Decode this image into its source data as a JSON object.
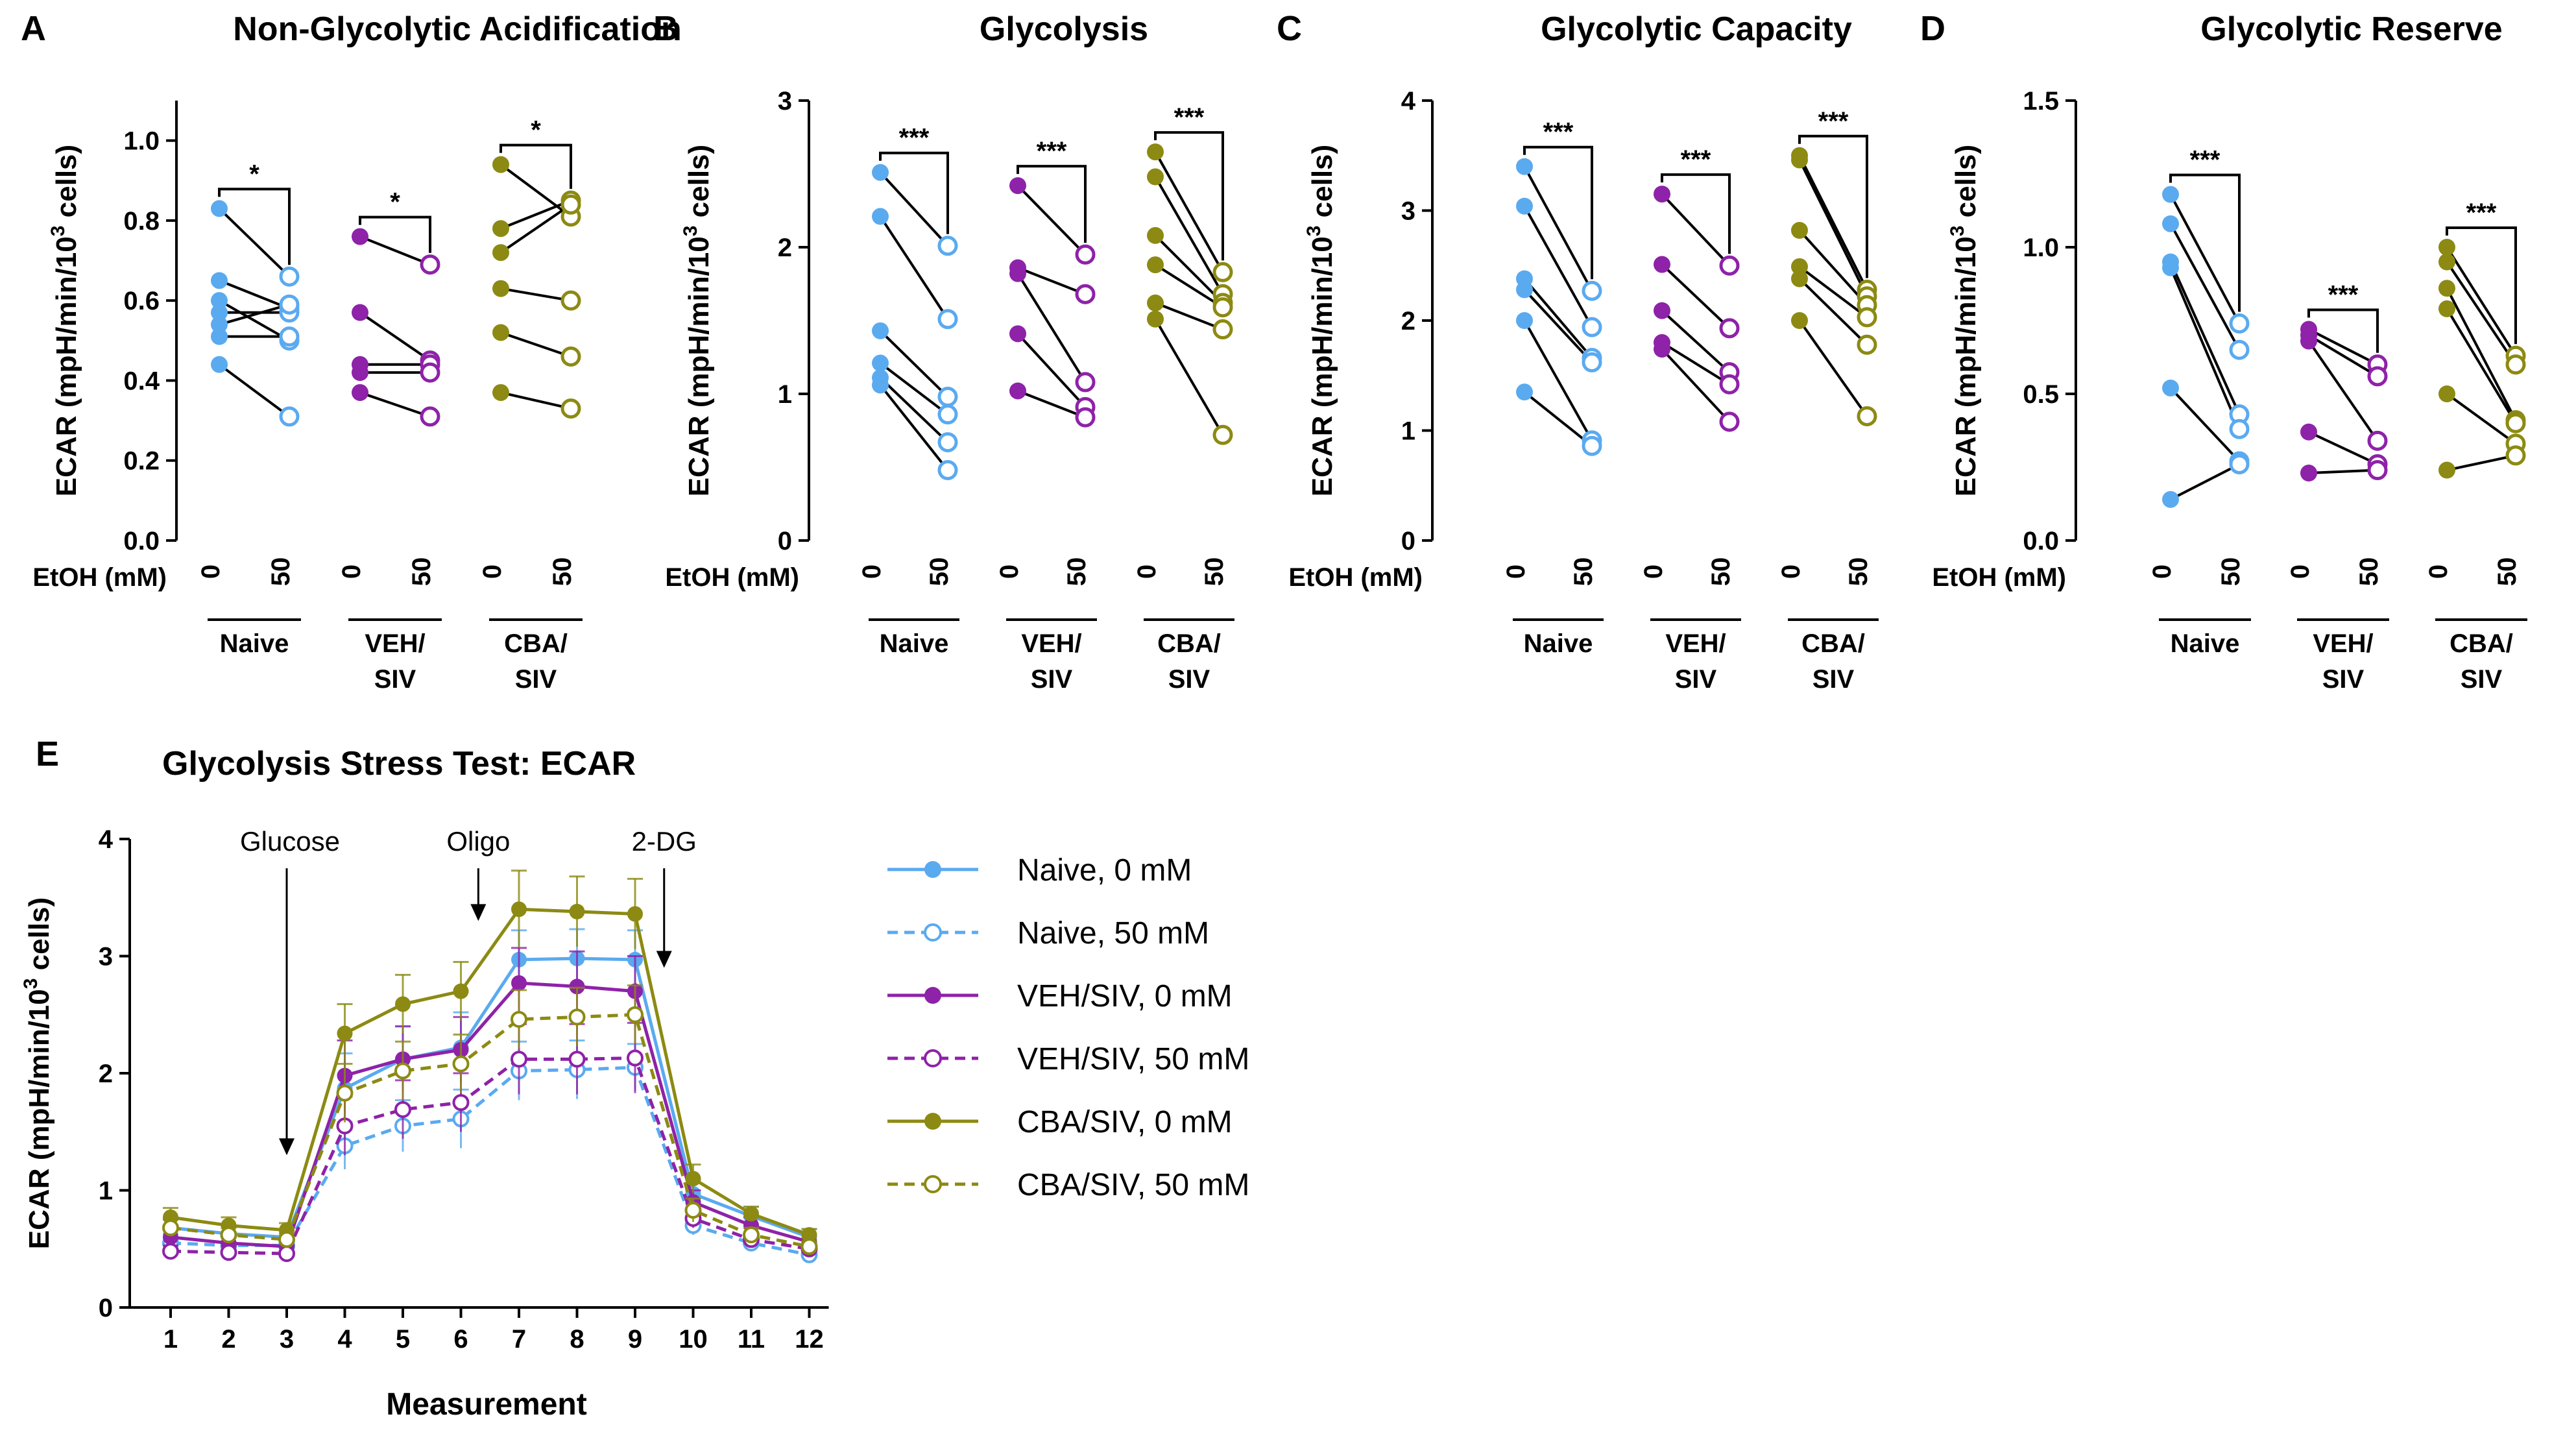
{
  "colors": {
    "naive": "#5aaaf0",
    "veh": "#8e22a8",
    "cba": "#8c8a12",
    "black": "#000000"
  },
  "panels_top": [
    {
      "letter": "A",
      "title": "Non-Glycolytic Acidification",
      "ylabel": "ECAR (mpH/min/10",
      "ylabel_sup": "3",
      "ylabel_end": " cells)",
      "ylim": [
        0,
        1.1
      ],
      "yticks": [
        "0.0",
        "0.2",
        "0.4",
        "0.6",
        "0.8",
        "1.0"
      ],
      "ytick_values": [
        0,
        0.2,
        0.4,
        0.6,
        0.8,
        1.0
      ],
      "etoh_label": "EtOH  (mM)",
      "groups": [
        {
          "name_lines": [
            "Naive"
          ],
          "color_key": "naive",
          "sig": "*",
          "x_labels": [
            "0",
            "50"
          ],
          "pairs": [
            [
              0.83,
              0.66
            ],
            [
              0.65,
              0.58
            ],
            [
              0.6,
              0.5
            ],
            [
              0.57,
              0.57
            ],
            [
              0.54,
              0.59
            ],
            [
              0.51,
              0.51
            ],
            [
              0.44,
              0.31
            ]
          ]
        },
        {
          "name_lines": [
            "VEH/",
            "SIV"
          ],
          "color_key": "veh",
          "sig": "*",
          "x_labels": [
            "0",
            "50"
          ],
          "pairs": [
            [
              0.76,
              0.69
            ],
            [
              0.57,
              0.45
            ],
            [
              0.44,
              0.44
            ],
            [
              0.42,
              0.42
            ],
            [
              0.37,
              0.31
            ]
          ]
        },
        {
          "name_lines": [
            "CBA/",
            "SIV"
          ],
          "color_key": "cba",
          "sig": "*",
          "x_labels": [
            "0",
            "50"
          ],
          "pairs": [
            [
              0.94,
              0.81
            ],
            [
              0.78,
              0.85
            ],
            [
              0.72,
              0.84
            ],
            [
              0.63,
              0.6
            ],
            [
              0.52,
              0.46
            ],
            [
              0.37,
              0.33
            ]
          ]
        }
      ]
    },
    {
      "letter": "B",
      "title": "Glycolysis",
      "ylabel": "ECAR (mpH/min/10",
      "ylabel_sup": "3",
      "ylabel_end": " cells)",
      "ylim": [
        0,
        3
      ],
      "yticks": [
        "0",
        "1",
        "2",
        "3"
      ],
      "ytick_values": [
        0,
        1,
        2,
        3
      ],
      "etoh_label": "EtOH  (mM)",
      "groups": [
        {
          "name_lines": [
            "Naive"
          ],
          "color_key": "naive",
          "sig": "***",
          "x_labels": [
            "0",
            "50"
          ],
          "pairs": [
            [
              2.51,
              2.01
            ],
            [
              2.21,
              1.51
            ],
            [
              1.43,
              0.98
            ],
            [
              1.21,
              0.86
            ],
            [
              1.11,
              0.67
            ],
            [
              1.06,
              0.48
            ]
          ]
        },
        {
          "name_lines": [
            "VEH/",
            "SIV"
          ],
          "color_key": "veh",
          "sig": "***",
          "x_labels": [
            "0",
            "50"
          ],
          "pairs": [
            [
              2.42,
              1.95
            ],
            [
              1.86,
              1.68
            ],
            [
              1.82,
              1.08
            ],
            [
              1.41,
              0.91
            ],
            [
              1.02,
              0.84
            ]
          ]
        },
        {
          "name_lines": [
            "CBA/",
            "SIV"
          ],
          "color_key": "cba",
          "sig": "***",
          "x_labels": [
            "0",
            "50"
          ],
          "pairs": [
            [
              2.65,
              1.83
            ],
            [
              2.48,
              1.68
            ],
            [
              2.08,
              1.62
            ],
            [
              1.88,
              1.59
            ],
            [
              1.62,
              1.44
            ],
            [
              1.51,
              0.72
            ]
          ]
        }
      ]
    },
    {
      "letter": "C",
      "title": "Glycolytic Capacity",
      "ylabel": "ECAR (mpH/min/10",
      "ylabel_sup": "3",
      "ylabel_end": " cells)",
      "ylim": [
        0,
        4
      ],
      "yticks": [
        "0",
        "1",
        "2",
        "3",
        "4"
      ],
      "ytick_values": [
        0,
        1,
        2,
        3,
        4
      ],
      "etoh_label": "EtOH  (mM)",
      "groups": [
        {
          "name_lines": [
            "Naive"
          ],
          "color_key": "naive",
          "sig": "***",
          "x_labels": [
            "0",
            "50"
          ],
          "pairs": [
            [
              3.4,
              2.27
            ],
            [
              3.04,
              1.94
            ],
            [
              2.38,
              1.66
            ],
            [
              2.28,
              1.62
            ],
            [
              2.0,
              0.91
            ],
            [
              1.35,
              0.86
            ]
          ]
        },
        {
          "name_lines": [
            "VEH/",
            "SIV"
          ],
          "color_key": "veh",
          "sig": "***",
          "x_labels": [
            "0",
            "50"
          ],
          "pairs": [
            [
              3.15,
              2.5
            ],
            [
              2.51,
              1.93
            ],
            [
              2.09,
              1.53
            ],
            [
              1.8,
              1.42
            ],
            [
              1.74,
              1.08
            ]
          ]
        },
        {
          "name_lines": [
            "CBA/",
            "SIV"
          ],
          "color_key": "cba",
          "sig": "***",
          "x_labels": [
            "0",
            "50"
          ],
          "pairs": [
            [
              3.5,
              2.28
            ],
            [
              3.46,
              2.22
            ],
            [
              2.82,
              2.14
            ],
            [
              2.49,
              2.03
            ],
            [
              2.38,
              1.78
            ],
            [
              2.0,
              1.13
            ]
          ]
        }
      ]
    },
    {
      "letter": "D",
      "title": "Glycolytic Reserve",
      "ylabel": "ECAR (mpH/min/10",
      "ylabel_sup": "3",
      "ylabel_end": " cells)",
      "ylim": [
        0,
        1.5
      ],
      "yticks": [
        "0.0",
        "0.5",
        "1.0",
        "1.5"
      ],
      "ytick_values": [
        0,
        0.5,
        1.0,
        1.5
      ],
      "etoh_label": "EtOH  (mM)",
      "groups": [
        {
          "name_lines": [
            "Naive"
          ],
          "color_key": "naive",
          "sig": "***",
          "x_labels": [
            "0",
            "50"
          ],
          "pairs": [
            [
              1.18,
              0.74
            ],
            [
              1.08,
              0.65
            ],
            [
              0.95,
              0.43
            ],
            [
              0.93,
              0.38
            ],
            [
              0.52,
              0.27
            ],
            [
              0.14,
              0.26
            ]
          ]
        },
        {
          "name_lines": [
            "VEH/",
            "SIV"
          ],
          "color_key": "veh",
          "sig": "***",
          "x_labels": [
            "0",
            "50"
          ],
          "pairs": [
            [
              0.72,
              0.6
            ],
            [
              0.7,
              0.56
            ],
            [
              0.68,
              0.34
            ],
            [
              0.37,
              0.26
            ],
            [
              0.23,
              0.24
            ]
          ]
        },
        {
          "name_lines": [
            "CBA/",
            "SIV"
          ],
          "color_key": "cba",
          "sig": "***",
          "x_labels": [
            "0",
            "50"
          ],
          "pairs": [
            [
              1.0,
              0.63
            ],
            [
              0.95,
              0.6
            ],
            [
              0.86,
              0.41
            ],
            [
              0.79,
              0.4
            ],
            [
              0.5,
              0.33
            ],
            [
              0.24,
              0.29
            ]
          ]
        }
      ]
    }
  ],
  "chart_data": {
    "type": "line",
    "letter": "E",
    "title": "Glycolysis Stress Test: ECAR",
    "xlabel": "Measurement",
    "ylabel": "ECAR (mpH/min/10",
    "ylabel_sup": "3",
    "ylabel_end": " cells)",
    "x": [
      1,
      2,
      3,
      4,
      5,
      6,
      7,
      8,
      9,
      10,
      11,
      12
    ],
    "xticks": [
      "1",
      "2",
      "3",
      "4",
      "5",
      "6",
      "7",
      "8",
      "9",
      "10",
      "11",
      "12"
    ],
    "ylim": [
      0,
      4
    ],
    "yticks": [
      "0",
      "1",
      "2",
      "3",
      "4"
    ],
    "ytick_values": [
      0,
      1,
      2,
      3,
      4
    ],
    "annotations": [
      {
        "text": "Glucose",
        "x": 3.0,
        "text_y": 3.9,
        "arrow_y1": 3.75,
        "arrow_y2": 1.3
      },
      {
        "text": "Oligo",
        "x": 6.3,
        "text_y": 3.9,
        "arrow_y1": 3.75,
        "arrow_y2": 3.3
      },
      {
        "text": "2-DG",
        "x": 9.5,
        "text_y": 3.9,
        "arrow_y1": 3.75,
        "arrow_y2": 2.9
      }
    ],
    "series": [
      {
        "name": "Naive, 0 mM",
        "color_key": "naive",
        "filled": true,
        "dashed": false,
        "values": [
          0.68,
          0.63,
          0.6,
          1.87,
          2.12,
          2.22,
          2.97,
          2.98,
          2.97,
          0.97,
          0.78,
          0.6
        ],
        "errors": [
          0.08,
          0.06,
          0.05,
          0.3,
          0.28,
          0.3,
          0.25,
          0.25,
          0.25,
          0.12,
          0.08,
          0.07
        ]
      },
      {
        "name": "Naive, 50 mM",
        "color_key": "naive",
        "filled": false,
        "dashed": true,
        "values": [
          0.55,
          0.53,
          0.53,
          1.38,
          1.55,
          1.61,
          2.02,
          2.03,
          2.05,
          0.7,
          0.55,
          0.45
        ],
        "errors": [
          0.08,
          0.07,
          0.06,
          0.2,
          0.22,
          0.25,
          0.25,
          0.25,
          0.2,
          0.08,
          0.07,
          0.07
        ]
      },
      {
        "name": "VEH/SIV, 0 mM",
        "color_key": "veh",
        "filled": true,
        "dashed": false,
        "values": [
          0.6,
          0.55,
          0.52,
          1.98,
          2.12,
          2.2,
          2.77,
          2.74,
          2.7,
          0.9,
          0.7,
          0.56
        ],
        "errors": [
          0.07,
          0.06,
          0.05,
          0.3,
          0.28,
          0.28,
          0.3,
          0.3,
          0.3,
          0.1,
          0.07,
          0.06
        ]
      },
      {
        "name": "VEH/SIV, 50 mM",
        "color_key": "veh",
        "filled": false,
        "dashed": true,
        "values": [
          0.48,
          0.47,
          0.46,
          1.55,
          1.69,
          1.75,
          2.12,
          2.12,
          2.13,
          0.76,
          0.58,
          0.5
        ],
        "errors": [
          0.05,
          0.05,
          0.05,
          0.25,
          0.25,
          0.25,
          0.3,
          0.3,
          0.3,
          0.08,
          0.06,
          0.05
        ]
      },
      {
        "name": "CBA/SIV, 0 mM",
        "color_key": "cba",
        "filled": true,
        "dashed": false,
        "values": [
          0.77,
          0.7,
          0.66,
          2.34,
          2.59,
          2.7,
          3.4,
          3.38,
          3.36,
          1.1,
          0.8,
          0.62
        ],
        "errors": [
          0.08,
          0.07,
          0.06,
          0.25,
          0.25,
          0.25,
          0.33,
          0.3,
          0.3,
          0.12,
          0.06,
          0.05
        ]
      },
      {
        "name": "CBA/SIV, 50 mM",
        "color_key": "cba",
        "filled": false,
        "dashed": true,
        "values": [
          0.68,
          0.62,
          0.58,
          1.83,
          2.02,
          2.08,
          2.46,
          2.48,
          2.5,
          0.83,
          0.62,
          0.52
        ],
        "errors": [
          0.07,
          0.06,
          0.05,
          0.25,
          0.25,
          0.25,
          0.25,
          0.25,
          0.25,
          0.1,
          0.06,
          0.05
        ]
      }
    ]
  }
}
